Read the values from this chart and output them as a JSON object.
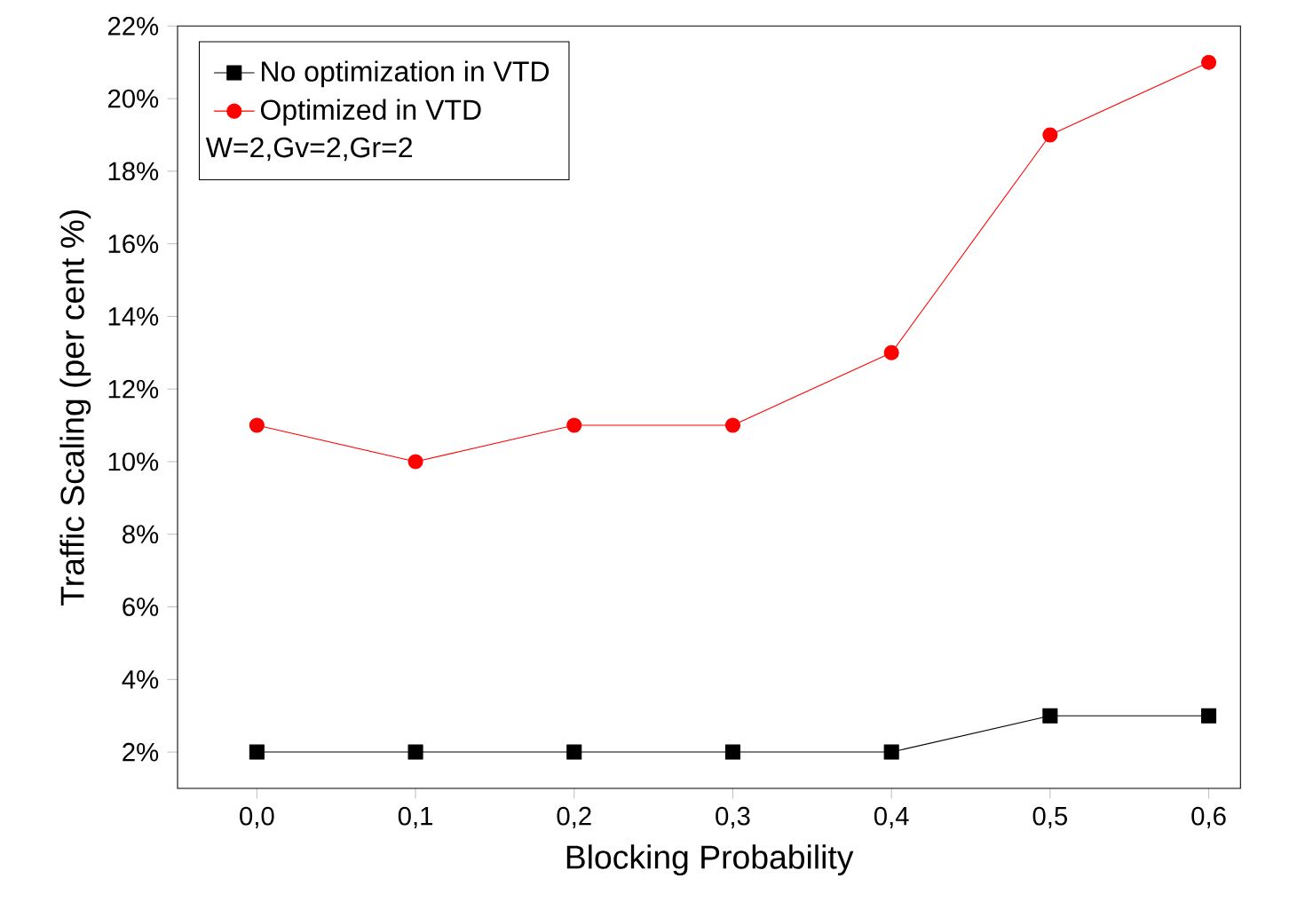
{
  "chart_data": {
    "type": "line",
    "xlabel": "Blocking Probability",
    "ylabel": "Traffic Scaling (per cent %)",
    "x": [
      0,
      0.1,
      0.2,
      0.3,
      0.4,
      0.5,
      0.6
    ],
    "series": [
      {
        "name": "No optimization in VTD",
        "color": "#000000",
        "marker": "square",
        "values": [
          2,
          2,
          2,
          2,
          2,
          3,
          3
        ]
      },
      {
        "name": "Optimized in VTD",
        "color": "#ff0000",
        "marker": "circle",
        "values": [
          11,
          10,
          11,
          11,
          13,
          19,
          21
        ]
      }
    ],
    "annotations": [
      "W=2,Gv=2,Gr=2"
    ],
    "xlim": [
      -0.05,
      0.62
    ],
    "ylim": [
      1,
      22
    ],
    "xticks": [
      {
        "value": 0,
        "label": "0,0"
      },
      {
        "value": 0.1,
        "label": "0,1"
      },
      {
        "value": 0.2,
        "label": "0,2"
      },
      {
        "value": 0.3,
        "label": "0,3"
      },
      {
        "value": 0.4,
        "label": "0,4"
      },
      {
        "value": 0.5,
        "label": "0,5"
      },
      {
        "value": 0.6,
        "label": "0,6"
      }
    ],
    "yticks": [
      {
        "value": 2,
        "label": "2%"
      },
      {
        "value": 4,
        "label": "4%"
      },
      {
        "value": 6,
        "label": "6%"
      },
      {
        "value": 8,
        "label": "8%"
      },
      {
        "value": 10,
        "label": "10%"
      },
      {
        "value": 12,
        "label": "12%"
      },
      {
        "value": 14,
        "label": "14%"
      },
      {
        "value": 16,
        "label": "16%"
      },
      {
        "value": 18,
        "label": "18%"
      },
      {
        "value": 20,
        "label": "20%"
      },
      {
        "value": 22,
        "label": "22%"
      }
    ],
    "legend": "top left",
    "grid": false,
    "line_style": "solid"
  }
}
